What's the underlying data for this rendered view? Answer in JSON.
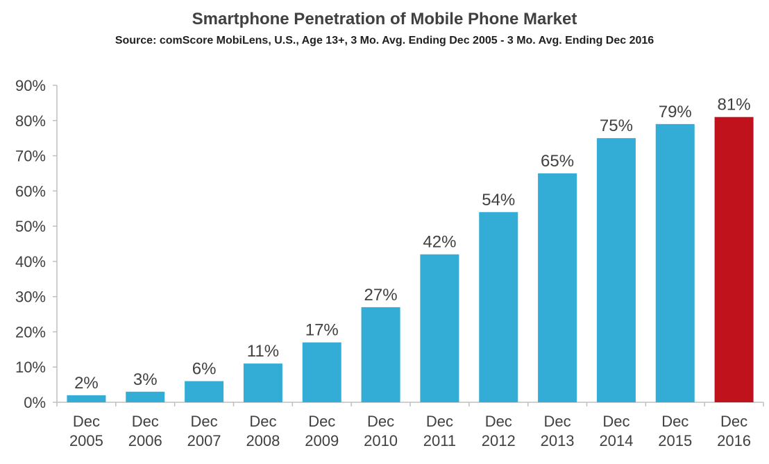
{
  "chart_data": {
    "type": "bar",
    "title": "Smartphone Penetration of Mobile Phone Market",
    "subtitle": "Source: comScore MobiLens, U.S., Age 13+, 3 Mo. Avg. Ending Dec 2005 - 3 Mo. Avg. Ending Dec 2016",
    "categories": [
      [
        "Dec",
        "2005"
      ],
      [
        "Dec",
        "2006"
      ],
      [
        "Dec",
        "2007"
      ],
      [
        "Dec",
        "2008"
      ],
      [
        "Dec",
        "2009"
      ],
      [
        "Dec",
        "2010"
      ],
      [
        "Dec",
        "2011"
      ],
      [
        "Dec",
        "2012"
      ],
      [
        "Dec",
        "2013"
      ],
      [
        "Dec",
        "2014"
      ],
      [
        "Dec",
        "2015"
      ],
      [
        "Dec",
        "2016"
      ]
    ],
    "values": [
      2,
      3,
      6,
      11,
      17,
      27,
      42,
      54,
      65,
      75,
      79,
      81
    ],
    "value_labels": [
      "2%",
      "3%",
      "6%",
      "11%",
      "17%",
      "27%",
      "42%",
      "54%",
      "65%",
      "75%",
      "79%",
      "81%"
    ],
    "ylim": [
      0,
      90
    ],
    "yticks": [
      0,
      10,
      20,
      30,
      40,
      50,
      60,
      70,
      80,
      90
    ],
    "ytick_labels": [
      "0%",
      "10%",
      "20%",
      "30%",
      "40%",
      "50%",
      "60%",
      "70%",
      "80%",
      "90%"
    ],
    "xlabel": "",
    "ylabel": "",
    "grid": false,
    "colors": {
      "bar": "#33acd6",
      "highlight": "#c0121c",
      "highlight_index": 11,
      "axis": "#bfbfbf",
      "text": "#404040"
    }
  }
}
